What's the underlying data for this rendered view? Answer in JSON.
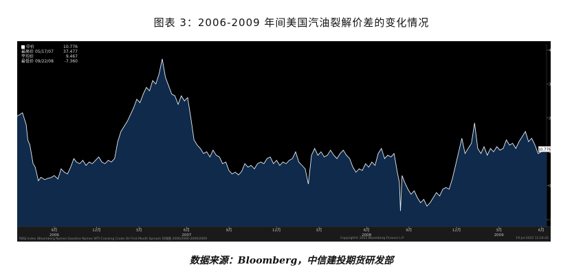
{
  "figure_title": "图表 3：2006-2009 年间美国汽油裂解价差的变化情况",
  "source_note": "数据来源：Bloomberg，中信建投期货研发部",
  "legend": {
    "rows": [
      {
        "label": "中价",
        "date": "",
        "value": "10.776"
      },
      {
        "label": "最高价",
        "date": "05/17/07",
        "value": "37.477"
      },
      {
        "label": "平均价",
        "date": "",
        "value": "9.467"
      },
      {
        "label": "最低价",
        "date": "09/22/08",
        "value": "-7.360"
      }
    ]
  },
  "footer": {
    "left": "RBSJ Index (Bloomberg Nymex Gasoline Nymex WTI Cracking Crude Oil First Month Spread) 日线图 2006/2006-2009/2009",
    "middle": "Copyright© 2022 Bloomberg Finance L.P.",
    "right": "19-Jul-2022 12:24:42"
  },
  "last_value_label": "10.776",
  "colors": {
    "background": "#000000",
    "area_fill": "#0f2a4a",
    "line": "#e8eef6",
    "axis_text": "#c0c0c0",
    "year_band": "#3a3a3a"
  },
  "chart_data": {
    "type": "area",
    "title": "",
    "xlabel": "",
    "ylabel": "",
    "ylim": [
      -12,
      41
    ],
    "y_ticks": [
      40,
      30,
      20,
      10,
      0,
      -10
    ],
    "x_ticks": [
      {
        "label": "9月",
        "t": 0.07
      },
      {
        "label": "12月",
        "t": 0.15
      },
      {
        "label": "3月",
        "t": 0.23
      },
      {
        "label": "6月",
        "t": 0.32
      },
      {
        "label": "9月",
        "t": 0.4
      },
      {
        "label": "12月",
        "t": 0.49
      },
      {
        "label": "3月",
        "t": 0.57
      },
      {
        "label": "6月",
        "t": 0.66
      },
      {
        "label": "9月",
        "t": 0.74
      },
      {
        "label": "12月",
        "t": 0.83
      },
      {
        "label": "3月",
        "t": 0.91
      },
      {
        "label": "6月",
        "t": 0.99
      }
    ],
    "x_year_labels": [
      {
        "label": "2006",
        "t": 0.07
      },
      {
        "label": "2007",
        "t": 0.32
      },
      {
        "label": "2008",
        "t": 0.66
      },
      {
        "label": "2009",
        "t": 0.91
      }
    ],
    "grid": false,
    "series": [
      {
        "values": [
          [
            0.0,
            20.5
          ],
          [
            0.01,
            21.5
          ],
          [
            0.017,
            18.0
          ],
          [
            0.02,
            13.5
          ],
          [
            0.024,
            12.0
          ],
          [
            0.03,
            6.5
          ],
          [
            0.034,
            5.5
          ],
          [
            0.04,
            1.5
          ],
          [
            0.045,
            2.5
          ],
          [
            0.052,
            1.8
          ],
          [
            0.058,
            2.2
          ],
          [
            0.064,
            2.4
          ],
          [
            0.07,
            3.0
          ],
          [
            0.077,
            2.0
          ],
          [
            0.083,
            5.0
          ],
          [
            0.089,
            4.0
          ],
          [
            0.095,
            3.5
          ],
          [
            0.101,
            5.5
          ],
          [
            0.107,
            8.0
          ],
          [
            0.112,
            7.0
          ],
          [
            0.118,
            6.5
          ],
          [
            0.124,
            7.5
          ],
          [
            0.13,
            6.0
          ],
          [
            0.136,
            7.0
          ],
          [
            0.142,
            6.5
          ],
          [
            0.148,
            7.5
          ],
          [
            0.154,
            8.5
          ],
          [
            0.16,
            7.0
          ],
          [
            0.166,
            6.5
          ],
          [
            0.172,
            7.5
          ],
          [
            0.178,
            7.0
          ],
          [
            0.184,
            8.0
          ],
          [
            0.19,
            13.0
          ],
          [
            0.196,
            16.0
          ],
          [
            0.202,
            17.5
          ],
          [
            0.208,
            19.0
          ],
          [
            0.214,
            21.0
          ],
          [
            0.22,
            23.0
          ],
          [
            0.226,
            25.5
          ],
          [
            0.232,
            24.5
          ],
          [
            0.238,
            27.0
          ],
          [
            0.244,
            29.0
          ],
          [
            0.25,
            28.0
          ],
          [
            0.256,
            31.0
          ],
          [
            0.262,
            30.0
          ],
          [
            0.268,
            33.0
          ],
          [
            0.274,
            37.4
          ],
          [
            0.28,
            32.0
          ],
          [
            0.286,
            29.5
          ],
          [
            0.292,
            27.0
          ],
          [
            0.298,
            26.5
          ],
          [
            0.304,
            24.0
          ],
          [
            0.31,
            26.5
          ],
          [
            0.316,
            25.0
          ],
          [
            0.322,
            26.0
          ],
          [
            0.328,
            20.0
          ],
          [
            0.334,
            13.5
          ],
          [
            0.34,
            12.0
          ],
          [
            0.346,
            11.0
          ],
          [
            0.352,
            9.5
          ],
          [
            0.358,
            10.0
          ],
          [
            0.364,
            8.5
          ],
          [
            0.37,
            10.5
          ],
          [
            0.376,
            9.0
          ],
          [
            0.382,
            8.5
          ],
          [
            0.388,
            6.5
          ],
          [
            0.394,
            7.0
          ],
          [
            0.4,
            4.5
          ],
          [
            0.406,
            3.5
          ],
          [
            0.412,
            4.0
          ],
          [
            0.418,
            3.2
          ],
          [
            0.424,
            4.2
          ],
          [
            0.43,
            6.5
          ],
          [
            0.436,
            5.5
          ],
          [
            0.442,
            6.0
          ],
          [
            0.448,
            5.0
          ],
          [
            0.454,
            6.5
          ],
          [
            0.46,
            7.0
          ],
          [
            0.466,
            6.5
          ],
          [
            0.472,
            8.0
          ],
          [
            0.478,
            8.5
          ],
          [
            0.484,
            6.5
          ],
          [
            0.49,
            7.5
          ],
          [
            0.496,
            6.0
          ],
          [
            0.502,
            7.0
          ],
          [
            0.508,
            6.5
          ],
          [
            0.514,
            7.5
          ],
          [
            0.52,
            8.0
          ],
          [
            0.526,
            10.0
          ],
          [
            0.532,
            7.0
          ],
          [
            0.538,
            6.0
          ],
          [
            0.544,
            5.0
          ],
          [
            0.55,
            0.5
          ],
          [
            0.556,
            9.0
          ],
          [
            0.562,
            11.0
          ],
          [
            0.568,
            9.0
          ],
          [
            0.574,
            10.0
          ],
          [
            0.58,
            8.5
          ],
          [
            0.586,
            9.0
          ],
          [
            0.592,
            10.5
          ],
          [
            0.598,
            9.0
          ],
          [
            0.604,
            8.0
          ],
          [
            0.61,
            9.5
          ],
          [
            0.616,
            10.5
          ],
          [
            0.622,
            9.0
          ],
          [
            0.628,
            8.0
          ],
          [
            0.634,
            5.5
          ],
          [
            0.64,
            4.0
          ],
          [
            0.646,
            5.0
          ],
          [
            0.652,
            4.5
          ],
          [
            0.658,
            6.5
          ],
          [
            0.664,
            5.5
          ],
          [
            0.67,
            7.0
          ],
          [
            0.676,
            6.0
          ],
          [
            0.682,
            9.5
          ],
          [
            0.688,
            11.0
          ],
          [
            0.694,
            8.0
          ],
          [
            0.7,
            9.0
          ],
          [
            0.706,
            8.5
          ],
          [
            0.712,
            9.5
          ],
          [
            0.718,
            4.0
          ],
          [
            0.722,
            1.0
          ],
          [
            0.724,
            -7.4
          ],
          [
            0.727,
            3.0
          ],
          [
            0.732,
            1.0
          ],
          [
            0.738,
            -1.0
          ],
          [
            0.744,
            -2.5
          ],
          [
            0.75,
            -1.5
          ],
          [
            0.756,
            -3.5
          ],
          [
            0.762,
            -5.0
          ],
          [
            0.768,
            -4.0
          ],
          [
            0.774,
            -6.0
          ],
          [
            0.78,
            -5.0
          ],
          [
            0.786,
            -3.5
          ],
          [
            0.792,
            -2.0
          ],
          [
            0.798,
            -3.0
          ],
          [
            0.804,
            -1.0
          ],
          [
            0.81,
            -0.5
          ],
          [
            0.816,
            -1.0
          ],
          [
            0.822,
            2.0
          ],
          [
            0.828,
            6.0
          ],
          [
            0.834,
            10.0
          ],
          [
            0.84,
            14.0
          ],
          [
            0.846,
            9.5
          ],
          [
            0.852,
            11.0
          ],
          [
            0.858,
            12.5
          ],
          [
            0.864,
            18.5
          ],
          [
            0.87,
            11.0
          ],
          [
            0.876,
            9.5
          ],
          [
            0.882,
            11.5
          ],
          [
            0.888,
            9.0
          ],
          [
            0.894,
            11.0
          ],
          [
            0.9,
            10.0
          ],
          [
            0.906,
            11.5
          ],
          [
            0.912,
            10.5
          ],
          [
            0.918,
            11.0
          ],
          [
            0.924,
            13.5
          ],
          [
            0.93,
            12.0
          ],
          [
            0.936,
            12.5
          ],
          [
            0.942,
            11.0
          ],
          [
            0.948,
            13.0
          ],
          [
            0.954,
            14.5
          ],
          [
            0.96,
            16.0
          ],
          [
            0.966,
            13.0
          ],
          [
            0.972,
            14.0
          ],
          [
            0.978,
            12.0
          ],
          [
            0.984,
            9.5
          ],
          [
            0.99,
            10.0
          ],
          [
            1.0,
            10.8
          ]
        ]
      }
    ]
  }
}
